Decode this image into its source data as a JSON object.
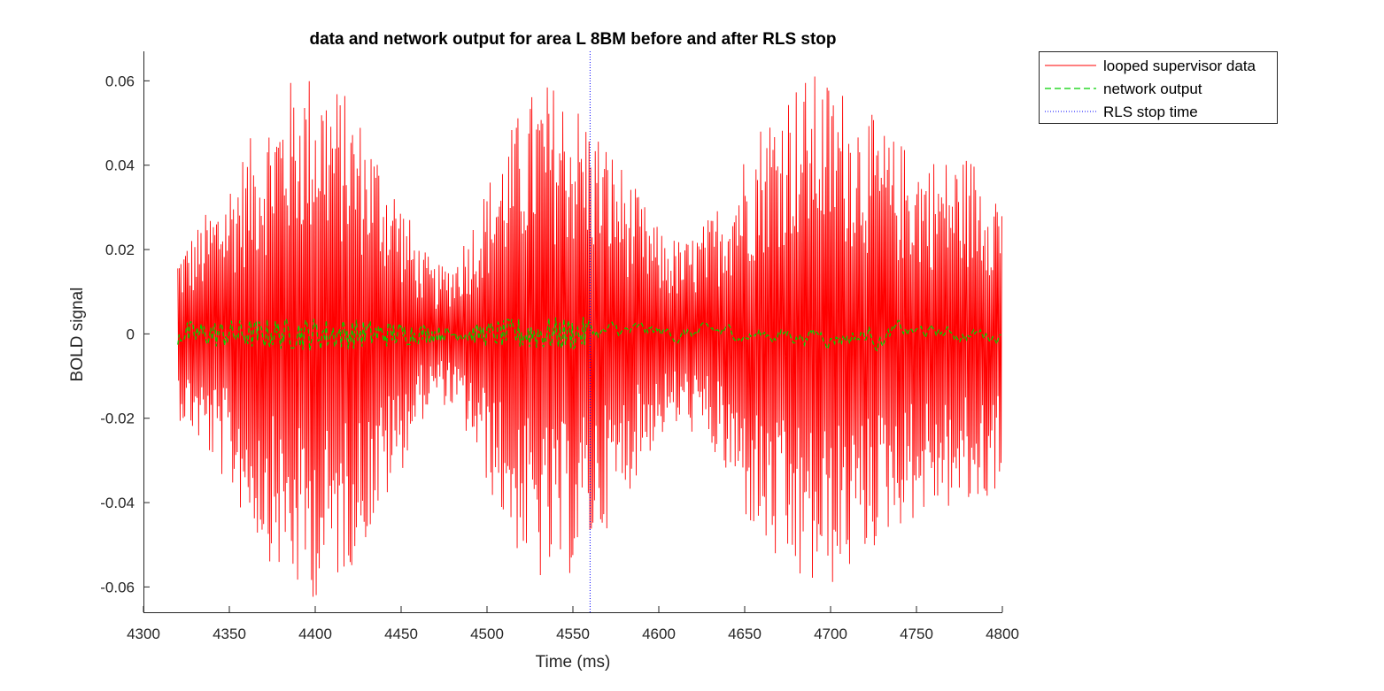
{
  "chart_data": {
    "type": "line",
    "title": "data and network output for area L 8BM before and after RLS stop",
    "xlabel": "Time (ms)",
    "ylabel": "BOLD signal",
    "xlim": [
      4300,
      4800
    ],
    "ylim": [
      -0.066,
      0.067
    ],
    "xticks": [
      4300,
      4350,
      4400,
      4450,
      4500,
      4550,
      4600,
      4650,
      4700,
      4750,
      4800
    ],
    "xtick_labels": [
      "4300",
      "4350",
      "4400",
      "4450",
      "4500",
      "4550",
      "4600",
      "4650",
      "4700",
      "4750",
      "4800"
    ],
    "yticks": [
      0.06,
      0.04,
      0.02,
      0,
      -0.02,
      -0.04,
      -0.06
    ],
    "ytick_labels": [
      "0.06",
      "0.04",
      "0.02",
      "0",
      "-0.02",
      "-0.04",
      "-0.06"
    ],
    "grid": false,
    "legend_position": "outside-top-right",
    "series": [
      {
        "name": "looped supervisor data",
        "style": "solid",
        "color": "#ff0000",
        "x_range": [
          4320,
          4800
        ],
        "envelope_x": [
          4320,
          4330,
          4345,
          4360,
          4375,
          4390,
          4405,
          4420,
          4435,
          4450,
          4460,
          4470,
          4480,
          4490,
          4500,
          4510,
          4520,
          4530,
          4540,
          4550,
          4560,
          4575,
          4590,
          4600,
          4615,
          4630,
          4645,
          4660,
          4675,
          4690,
          4705,
          4720,
          4735,
          4750,
          4765,
          4780,
          4790,
          4800
        ],
        "envelope_amp": [
          0.02,
          0.025,
          0.034,
          0.045,
          0.055,
          0.063,
          0.063,
          0.056,
          0.046,
          0.033,
          0.022,
          0.016,
          0.018,
          0.026,
          0.036,
          0.046,
          0.054,
          0.06,
          0.06,
          0.057,
          0.052,
          0.043,
          0.032,
          0.025,
          0.022,
          0.028,
          0.04,
          0.052,
          0.06,
          0.062,
          0.06,
          0.054,
          0.047,
          0.044,
          0.042,
          0.043,
          0.041,
          0.035
        ]
      },
      {
        "name": "network output",
        "style": "dashed",
        "color": "#00d000",
        "x_range": [
          4320,
          4800
        ],
        "envelope_x": [
          4320,
          4400,
          4450,
          4480,
          4520,
          4560,
          4600,
          4650,
          4700,
          4720,
          4760,
          4800
        ],
        "envelope_amp": [
          0.003,
          0.004,
          0.003,
          0.0015,
          0.004,
          0.004,
          0.003,
          0.003,
          0.004,
          0.005,
          0.003,
          0.003
        ]
      }
    ],
    "vertical_line": {
      "name": "RLS stop time",
      "x": 4560,
      "style": "dotted",
      "color": "#0000ff"
    }
  }
}
